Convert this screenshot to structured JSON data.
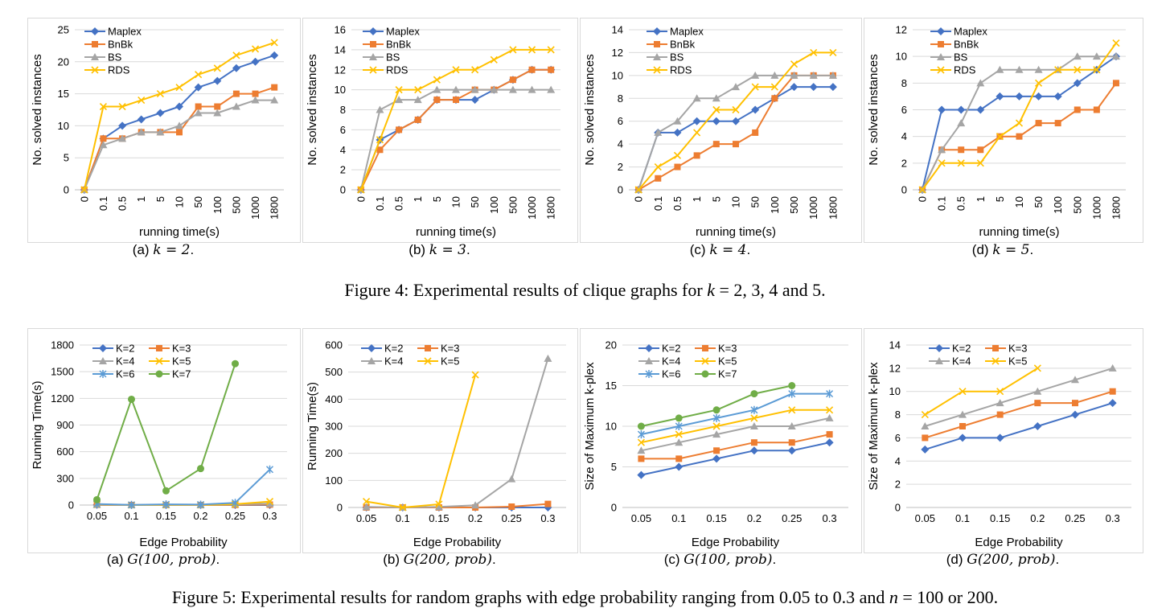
{
  "colors": {
    "blue": "#4472c4",
    "orange": "#ed7d31",
    "gray": "#a5a5a5",
    "yellow": "#ffc000",
    "teal": "#5b9bd5",
    "green": "#70ad47",
    "grid": "#d9d9d9"
  },
  "figure4": {
    "caption_pre": "Figure 4: Experimental results of clique graphs for ",
    "caption_math": "k",
    "caption_post": " = 2, 3, 4 and 5."
  },
  "figure5": {
    "caption_pre": "Figure 5: Experimental results for random graphs with edge probability ranging from 0.05 to 0.3 and ",
    "caption_math": "n",
    "caption_post": " = 100 or 200."
  },
  "subcaptions": {
    "f4a": {
      "pre": "(a) ",
      "math": "k = 2",
      "post": "."
    },
    "f4b": {
      "pre": "(b) ",
      "math": "k = 3",
      "post": "."
    },
    "f4c": {
      "pre": "(c) ",
      "math": "k = 4",
      "post": "."
    },
    "f4d": {
      "pre": "(d) ",
      "math": "k = 5",
      "post": "."
    },
    "f5a": {
      "pre": "(a) ",
      "math": "G(100, prob)",
      "post": "."
    },
    "f5b": {
      "pre": "(b) ",
      "math": "G(200, prob)",
      "post": "."
    },
    "f5c": {
      "pre": "(c) ",
      "math": "G(100, prob)",
      "post": "."
    },
    "f5d": {
      "pre": "(d) ",
      "math": "G(200, prob)",
      "post": "."
    }
  },
  "chart_data": [
    {
      "id": "f4a",
      "type": "line",
      "xlabel": "running time(s)",
      "ylabel": "No. solved instances",
      "categories": [
        "0",
        "0.1",
        "0.5",
        "1",
        "5",
        "10",
        "50",
        "100",
        "500",
        "1000",
        "1800"
      ],
      "ylim": [
        0,
        25
      ],
      "ytick_step": 5,
      "x_ticks_rotated": true,
      "legend": "top-left",
      "grid": true,
      "series": [
        {
          "name": "Maplex",
          "color": "#4472c4",
          "marker": "diamond",
          "values": [
            0,
            8,
            10,
            11,
            12,
            13,
            16,
            17,
            19,
            20,
            21
          ]
        },
        {
          "name": "BnBk",
          "color": "#ed7d31",
          "marker": "square",
          "values": [
            0,
            8,
            8,
            9,
            9,
            9,
            13,
            13,
            15,
            15,
            16
          ]
        },
        {
          "name": "BS",
          "color": "#a5a5a5",
          "marker": "triangle",
          "values": [
            0,
            7,
            8,
            9,
            9,
            10,
            12,
            12,
            13,
            14,
            14
          ]
        },
        {
          "name": "RDS",
          "color": "#ffc000",
          "marker": "x",
          "values": [
            0,
            13,
            13,
            14,
            15,
            16,
            18,
            19,
            21,
            22,
            23
          ]
        }
      ]
    },
    {
      "id": "f4b",
      "type": "line",
      "xlabel": "running time(s)",
      "ylabel": "No. solved instances",
      "categories": [
        "0",
        "0.1",
        "0.5",
        "1",
        "5",
        "10",
        "50",
        "100",
        "500",
        "1000",
        "1800"
      ],
      "ylim": [
        0,
        16
      ],
      "ytick_step": 2,
      "x_ticks_rotated": true,
      "legend": "top-left",
      "grid": true,
      "series": [
        {
          "name": "Maplex",
          "color": "#4472c4",
          "marker": "diamond",
          "values": [
            0,
            5,
            6,
            7,
            9,
            9,
            9,
            10,
            11,
            12,
            12
          ]
        },
        {
          "name": "BnBk",
          "color": "#ed7d31",
          "marker": "square",
          "values": [
            0,
            4,
            6,
            7,
            9,
            9,
            10,
            10,
            11,
            12,
            12
          ]
        },
        {
          "name": "BS",
          "color": "#a5a5a5",
          "marker": "triangle",
          "values": [
            0,
            8,
            9,
            9,
            10,
            10,
            10,
            10,
            10,
            10,
            10
          ]
        },
        {
          "name": "RDS",
          "color": "#ffc000",
          "marker": "x",
          "values": [
            0,
            5,
            10,
            10,
            11,
            12,
            12,
            13,
            14,
            14,
            14
          ]
        }
      ]
    },
    {
      "id": "f4c",
      "type": "line",
      "xlabel": "running time(s)",
      "ylabel": "No. solved instances",
      "categories": [
        "0",
        "0.1",
        "0.5",
        "1",
        "5",
        "10",
        "50",
        "100",
        "500",
        "1000",
        "1800"
      ],
      "ylim": [
        0,
        14
      ],
      "ytick_step": 2,
      "x_ticks_rotated": true,
      "legend": "top-left",
      "grid": true,
      "series": [
        {
          "name": "Maplex",
          "color": "#4472c4",
          "marker": "diamond",
          "values": [
            0,
            5,
            5,
            6,
            6,
            6,
            7,
            8,
            9,
            9,
            9
          ]
        },
        {
          "name": "BnBk",
          "color": "#ed7d31",
          "marker": "square",
          "values": [
            0,
            1,
            2,
            3,
            4,
            4,
            5,
            8,
            10,
            10,
            10
          ]
        },
        {
          "name": "BS",
          "color": "#a5a5a5",
          "marker": "triangle",
          "values": [
            0,
            5,
            6,
            8,
            8,
            9,
            10,
            10,
            10,
            10,
            10
          ]
        },
        {
          "name": "RDS",
          "color": "#ffc000",
          "marker": "x",
          "values": [
            0,
            2,
            3,
            5,
            7,
            7,
            9,
            9,
            11,
            12,
            12
          ]
        }
      ]
    },
    {
      "id": "f4d",
      "type": "line",
      "xlabel": "running time(s)",
      "ylabel": "No. solved instances",
      "categories": [
        "0",
        "0.1",
        "0.5",
        "1",
        "5",
        "10",
        "50",
        "100",
        "500",
        "1000",
        "1800"
      ],
      "ylim": [
        0,
        12
      ],
      "ytick_step": 2,
      "x_ticks_rotated": true,
      "legend": "top-left",
      "grid": true,
      "series": [
        {
          "name": "Maplex",
          "color": "#4472c4",
          "marker": "diamond",
          "values": [
            0,
            6,
            6,
            6,
            7,
            7,
            7,
            7,
            8,
            9,
            10
          ]
        },
        {
          "name": "BnBk",
          "color": "#ed7d31",
          "marker": "square",
          "values": [
            0,
            3,
            3,
            3,
            4,
            4,
            5,
            5,
            6,
            6,
            8
          ]
        },
        {
          "name": "BS",
          "color": "#a5a5a5",
          "marker": "triangle",
          "values": [
            0,
            3,
            5,
            8,
            9,
            9,
            9,
            9,
            10,
            10,
            10
          ]
        },
        {
          "name": "RDS",
          "color": "#ffc000",
          "marker": "x",
          "values": [
            0,
            2,
            2,
            2,
            4,
            5,
            8,
            9,
            9,
            9,
            11
          ]
        }
      ]
    },
    {
      "id": "f5a",
      "type": "line",
      "xlabel": "Edge Probability",
      "ylabel": "Running Time(s)",
      "categories": [
        "0.05",
        "0.1",
        "0.15",
        "0.2",
        "0.25",
        "0.3"
      ],
      "ylim": [
        0,
        1800
      ],
      "ytick_step": 300,
      "x_ticks_rotated": false,
      "legend": "top-left",
      "legend_cols": 2,
      "grid": true,
      "series": [
        {
          "name": "K=2",
          "color": "#4472c4",
          "marker": "diamond",
          "values": [
            2,
            0,
            0,
            0,
            0,
            0
          ]
        },
        {
          "name": "K=3",
          "color": "#ed7d31",
          "marker": "square",
          "values": [
            3,
            0,
            1,
            0,
            2,
            5
          ]
        },
        {
          "name": "K=4",
          "color": "#a5a5a5",
          "marker": "triangle",
          "values": [
            5,
            0,
            2,
            1,
            8,
            15
          ]
        },
        {
          "name": "K=5",
          "color": "#ffc000",
          "marker": "x",
          "values": [
            8,
            1,
            3,
            2,
            10,
            40
          ]
        },
        {
          "name": "K=6",
          "color": "#5b9bd5",
          "marker": "star",
          "values": [
            12,
            2,
            8,
            5,
            25,
            400
          ]
        },
        {
          "name": "K=7",
          "color": "#70ad47",
          "marker": "circle",
          "values": [
            60,
            1190,
            160,
            410,
            1590,
            null
          ]
        }
      ]
    },
    {
      "id": "f5b",
      "type": "line",
      "xlabel": "Edge Probability",
      "ylabel": "Running Time(s)",
      "categories": [
        "0.05",
        "0.1",
        "0.15",
        "0.2",
        "0.25",
        "0.3"
      ],
      "ylim": [
        0,
        600
      ],
      "ytick_step": 100,
      "x_ticks_rotated": false,
      "legend": "top-left",
      "legend_cols": 2,
      "grid": true,
      "series": [
        {
          "name": "K=2",
          "color": "#4472c4",
          "marker": "diamond",
          "values": [
            0,
            0,
            0,
            0,
            0,
            0
          ]
        },
        {
          "name": "K=3",
          "color": "#ed7d31",
          "marker": "square",
          "values": [
            0,
            0,
            0,
            0,
            3,
            13
          ]
        },
        {
          "name": "K=4",
          "color": "#a5a5a5",
          "marker": "triangle",
          "values": [
            2,
            0,
            2,
            8,
            105,
            550
          ]
        },
        {
          "name": "K=5",
          "color": "#ffc000",
          "marker": "x",
          "values": [
            22,
            0,
            12,
            490,
            null,
            null
          ]
        }
      ]
    },
    {
      "id": "f5c",
      "type": "line",
      "xlabel": "Edge Probability",
      "ylabel": "Size of Maximum k-plex",
      "categories": [
        "0.05",
        "0.1",
        "0.15",
        "0.2",
        "0.25",
        "0.3"
      ],
      "ylim": [
        0,
        20
      ],
      "ytick_step": 5,
      "x_ticks_rotated": false,
      "legend": "top-left",
      "legend_cols": 2,
      "grid": true,
      "series": [
        {
          "name": "K=2",
          "color": "#4472c4",
          "marker": "diamond",
          "values": [
            4,
            5,
            6,
            7,
            7,
            8
          ]
        },
        {
          "name": "K=3",
          "color": "#ed7d31",
          "marker": "square",
          "values": [
            6,
            6,
            7,
            8,
            8,
            9
          ]
        },
        {
          "name": "K=4",
          "color": "#a5a5a5",
          "marker": "triangle",
          "values": [
            7,
            8,
            9,
            10,
            10,
            11
          ]
        },
        {
          "name": "K=5",
          "color": "#ffc000",
          "marker": "x",
          "values": [
            8,
            9,
            10,
            11,
            12,
            12
          ]
        },
        {
          "name": "K=6",
          "color": "#5b9bd5",
          "marker": "star",
          "values": [
            9,
            10,
            11,
            12,
            14,
            14
          ]
        },
        {
          "name": "K=7",
          "color": "#70ad47",
          "marker": "circle",
          "values": [
            10,
            11,
            12,
            14,
            15,
            null
          ]
        }
      ]
    },
    {
      "id": "f5d",
      "type": "line",
      "xlabel": "Edge Probability",
      "ylabel": "Size of Maximum k-plex",
      "categories": [
        "0.05",
        "0.1",
        "0.15",
        "0.2",
        "0.25",
        "0.3"
      ],
      "ylim": [
        0,
        14
      ],
      "ytick_step": 2,
      "x_ticks_rotated": false,
      "legend": "top-left",
      "legend_cols": 2,
      "grid": true,
      "series": [
        {
          "name": "K=2",
          "color": "#4472c4",
          "marker": "diamond",
          "values": [
            5,
            6,
            6,
            7,
            8,
            9
          ]
        },
        {
          "name": "K=3",
          "color": "#ed7d31",
          "marker": "square",
          "values": [
            6,
            7,
            8,
            9,
            9,
            10
          ]
        },
        {
          "name": "K=4",
          "color": "#a5a5a5",
          "marker": "triangle",
          "values": [
            7,
            8,
            9,
            10,
            11,
            12
          ]
        },
        {
          "name": "K=5",
          "color": "#ffc000",
          "marker": "x",
          "values": [
            8,
            10,
            10,
            12,
            null,
            null
          ]
        }
      ]
    }
  ]
}
